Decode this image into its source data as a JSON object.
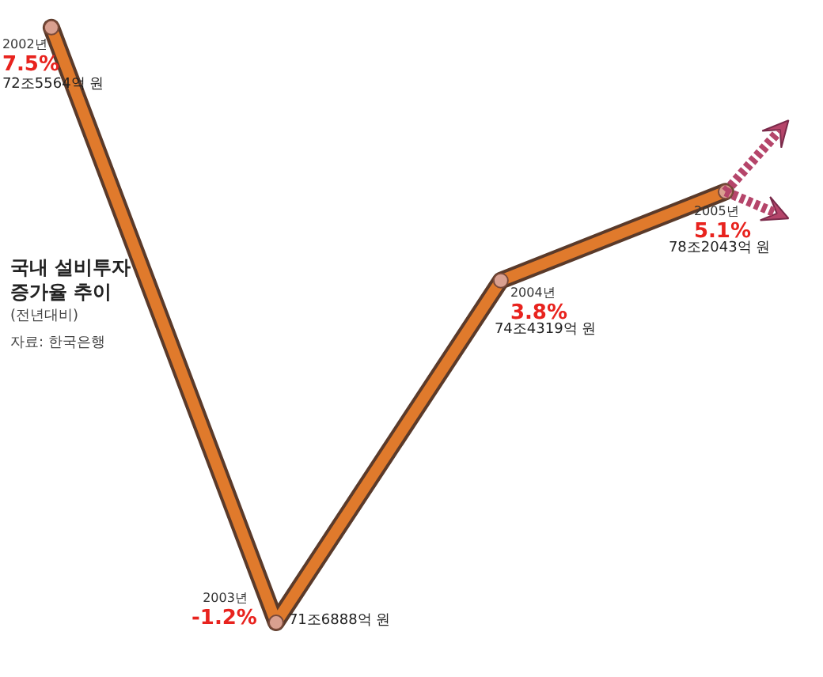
{
  "chart_data": {
    "type": "line",
    "title": "국내 설비투자 증가율 추이",
    "subtitle": "(전년대비)",
    "categories": [
      "2002년",
      "2003년",
      "2004년",
      "2005년"
    ],
    "series": [
      {
        "color": "#e07a2c",
        "values": [
          7.5,
          -1.2,
          3.8,
          5.1
        ],
        "value_labels": [
          "7.5%",
          "-1.2%",
          "3.8%",
          "5.1%"
        ]
      }
    ],
    "marker": "circle",
    "grid": false,
    "annotations": [
      "72조5564억 원",
      "71조6888억 원",
      "74조4319억 원",
      "78조2043억 원",
      "자료: 한국은행"
    ]
  }
}
